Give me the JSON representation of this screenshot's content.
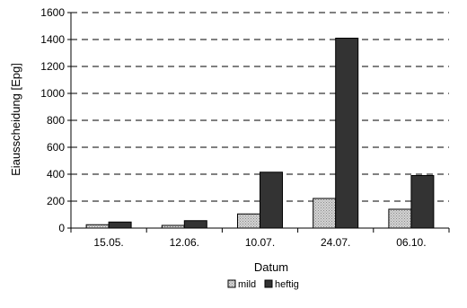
{
  "chart_data": {
    "type": "bar",
    "title": "",
    "xlabel": "Datum",
    "ylabel": "Eiausscheidung [Epg]",
    "categories": [
      "15.05.",
      "12.06.",
      "10.07.",
      "24.07.",
      "06.10."
    ],
    "series": [
      {
        "name": "mild",
        "values": [
          25,
          20,
          105,
          220,
          140
        ],
        "color": "#cccccc",
        "pattern": "dotted"
      },
      {
        "name": "heftig",
        "values": [
          45,
          55,
          415,
          1410,
          390
        ],
        "color": "#333333"
      }
    ],
    "ylim": [
      0,
      1600
    ],
    "yticks": [
      0,
      200,
      400,
      600,
      800,
      1000,
      1200,
      1400,
      1600
    ],
    "grid": "horizontal-dashed",
    "legend": "bottom"
  }
}
